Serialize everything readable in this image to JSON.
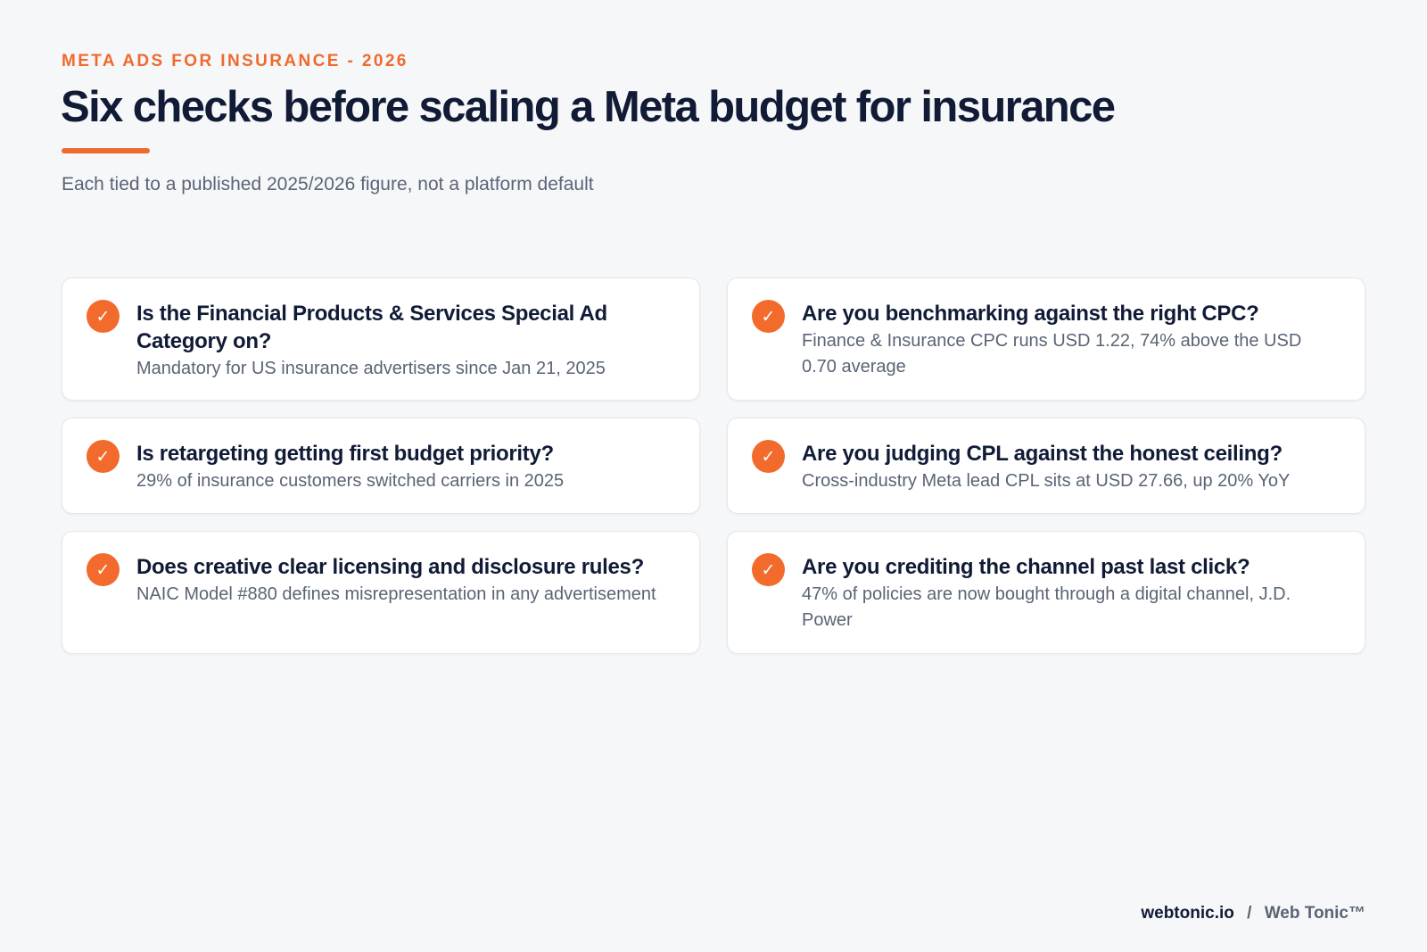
{
  "header": {
    "eyebrow": "META ADS FOR INSURANCE - 2026",
    "title": "Six checks before scaling a Meta budget for insurance",
    "subtitle": "Each tied to a published 2025/2026 figure, not a platform default"
  },
  "accent_color": "#ef6a2e",
  "checks": [
    {
      "icon": "checkmark-icon",
      "title": "Is the Financial Products & Services Special Ad Category on?",
      "body": "Mandatory for US insurance advertisers since Jan 21, 2025"
    },
    {
      "icon": "checkmark-icon",
      "title": "Are you benchmarking against the right CPC?",
      "body": "Finance & Insurance CPC runs USD 1.22, 74% above the USD 0.70 average"
    },
    {
      "icon": "checkmark-icon",
      "title": "Is retargeting getting first budget priority?",
      "body": "29% of insurance customers switched carriers in 2025"
    },
    {
      "icon": "checkmark-icon",
      "title": "Are you judging CPL against the honest ceiling?",
      "body": "Cross-industry Meta lead CPL sits at USD 27.66, up 20% YoY"
    },
    {
      "icon": "checkmark-icon",
      "title": "Does creative clear licensing and disclosure rules?",
      "body": "NAIC Model #880 defines misrepresentation in any advertisement"
    },
    {
      "icon": "checkmark-icon",
      "title": "Are you crediting the channel past last click?",
      "body": "47% of policies are now bought through a digital channel, J.D. Power"
    }
  ],
  "footer": {
    "site": "webtonic.io",
    "separator": "/",
    "brand": "Web Tonic™"
  }
}
